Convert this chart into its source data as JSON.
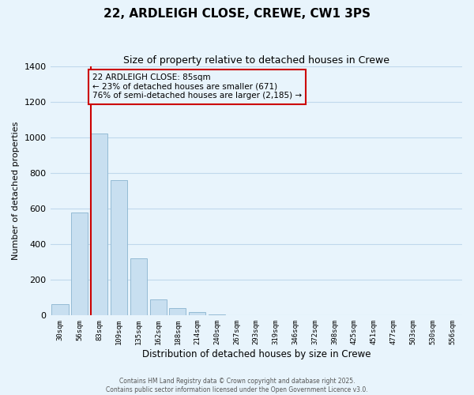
{
  "title": "22, ARDLEIGH CLOSE, CREWE, CW1 3PS",
  "subtitle": "Size of property relative to detached houses in Crewe",
  "xlabel": "Distribution of detached houses by size in Crewe",
  "ylabel": "Number of detached properties",
  "bar_color": "#c8dff0",
  "bar_edge_color": "#8ab4cf",
  "background_color": "#e8f4fc",
  "plot_bg_color": "#e8f4fc",
  "grid_color": "#c0d8ec",
  "annotation_box_color": "#cc0000",
  "vline_color": "#cc0000",
  "categories": [
    "30sqm",
    "56sqm",
    "83sqm",
    "109sqm",
    "135sqm",
    "162sqm",
    "188sqm",
    "214sqm",
    "240sqm",
    "267sqm",
    "293sqm",
    "319sqm",
    "346sqm",
    "372sqm",
    "398sqm",
    "425sqm",
    "451sqm",
    "477sqm",
    "503sqm",
    "530sqm",
    "556sqm"
  ],
  "values": [
    65,
    580,
    1025,
    760,
    320,
    90,
    40,
    18,
    8,
    2,
    0,
    0,
    0,
    0,
    0,
    0,
    0,
    0,
    0,
    0,
    0
  ],
  "ylim": [
    0,
    1400
  ],
  "yticks": [
    0,
    200,
    400,
    600,
    800,
    1000,
    1200,
    1400
  ],
  "vline_x_index": 2,
  "annotation_text": "22 ARDLEIGH CLOSE: 85sqm\n← 23% of detached houses are smaller (671)\n76% of semi-detached houses are larger (2,185) →",
  "footer_line1": "Contains HM Land Registry data © Crown copyright and database right 2025.",
  "footer_line2": "Contains public sector information licensed under the Open Government Licence v3.0."
}
